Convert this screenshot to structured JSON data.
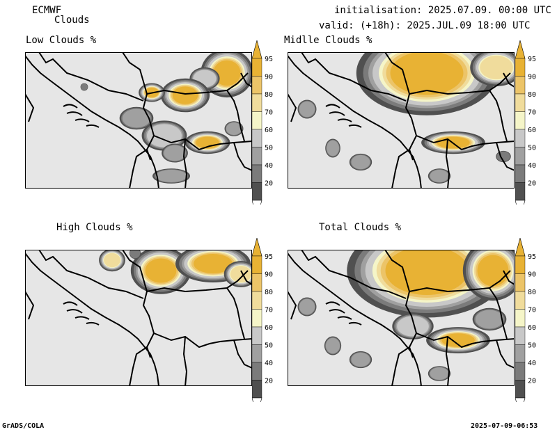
{
  "header": {
    "model": "ECMWF",
    "product": "Clouds",
    "init": "initialisation: 2025.07.09. 00:00 UTC",
    "valid": "valid: (+18h): 2025.JUL.09 18:00 UTC"
  },
  "panels": [
    {
      "id": "low",
      "title": "Low Clouds %"
    },
    {
      "id": "mid",
      "title": "Midlle Clouds %"
    },
    {
      "id": "high",
      "title": "High Clouds %"
    },
    {
      "id": "total",
      "title": "Total Clouds %"
    }
  ],
  "legend": {
    "levels": [
      "95",
      "90",
      "80",
      "70",
      "60",
      "50",
      "40",
      "20"
    ],
    "colors": {
      "c20": "#505050",
      "c40": "#7b7b7b",
      "c50": "#a0a0a0",
      "c60": "#c8c8c8",
      "c70": "#f5f5c8",
      "c80": "#f0dc9c",
      "c90": "#ecc468",
      "c95": "#e8b234"
    }
  },
  "footer": {
    "left": "GrADS/COLA",
    "right": "2025-07-09-06:53"
  }
}
